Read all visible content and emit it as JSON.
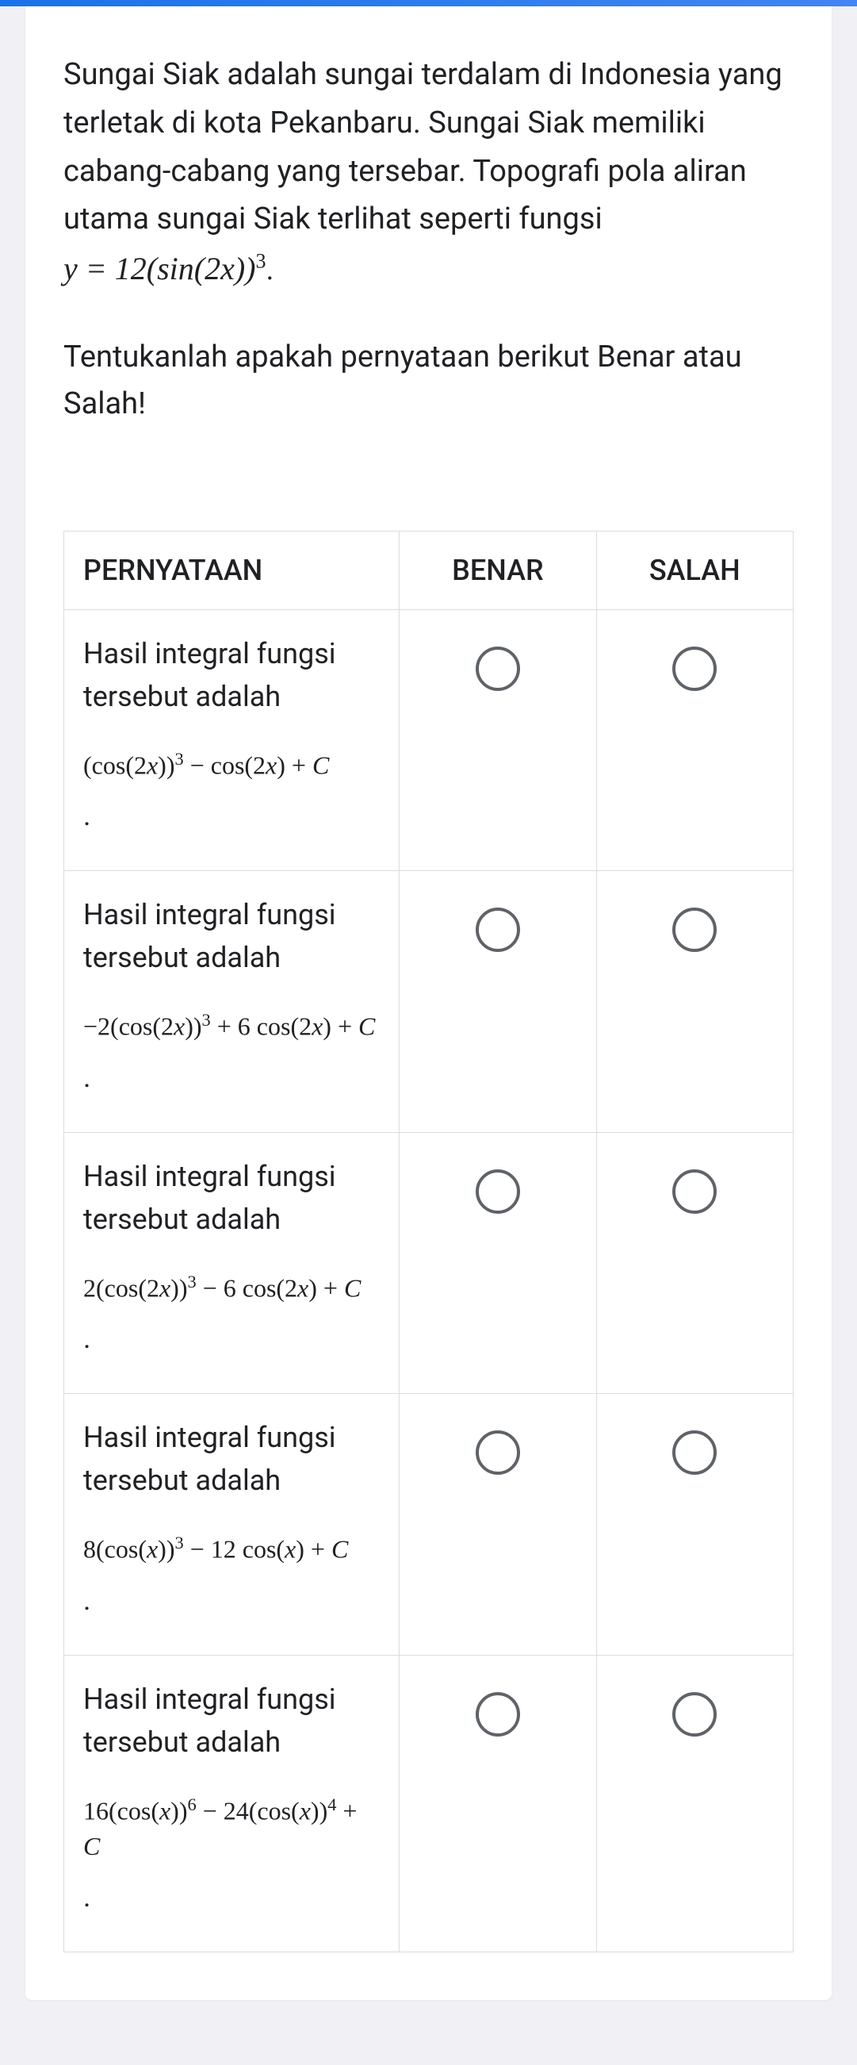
{
  "question": {
    "paragraph": "Sungai Siak adalah sungai terdalam di Indonesia yang terletak di kota Pekanbaru. Sungai Siak memiliki cabang-cabang yang tersebar. Topografi pola aliran utama sungai Siak terlihat seperti fungsi ",
    "formula_prefix": "y = 12",
    "formula_inner": "sin(2x)",
    "formula_exponent": "3",
    "formula_suffix": "."
  },
  "instruction": "Tentukanlah apakah pernyataan berikut Benar atau Salah!",
  "table": {
    "header_statement": "PERNYATAAN",
    "header_benar": "BENAR",
    "header_salah": "SALAH",
    "lead_text": "Hasil integral fungsi tersebut adalah",
    "rows": [
      {
        "formula_html": "(cos(2<span class=\"var\">x</span>))<sup>3</sup> − cos(2<span class=\"var\">x</span>) + <span class=\"var\">C</span>"
      },
      {
        "formula_html": "−2(cos(2<span class=\"var\">x</span>))<sup>3</sup> + 6 cos(2<span class=\"var\">x</span>) + <span class=\"var\">C</span>"
      },
      {
        "formula_html": "2(cos(2<span class=\"var\">x</span>))<sup>3</sup> − 6 cos(2<span class=\"var\">x</span>) + <span class=\"var\">C</span>"
      },
      {
        "formula_html": "8(cos(<span class=\"var\">x</span>))<sup>3</sup> − 12 cos(<span class=\"var\">x</span>) + <span class=\"var\">C</span>"
      },
      {
        "formula_html": "16(cos(<span class=\"var\">x</span>))<sup>6</sup> − 24(cos(<span class=\"var\">x</span>))<sup>4</sup> + <span class=\"var\">C</span>"
      }
    ]
  },
  "colors": {
    "top_bar": "#1a73e8",
    "card_bg": "#ffffff",
    "body_bg": "#f0f0f5",
    "text": "#202124",
    "border": "#dadce0",
    "radio_border": "#5f6368"
  }
}
